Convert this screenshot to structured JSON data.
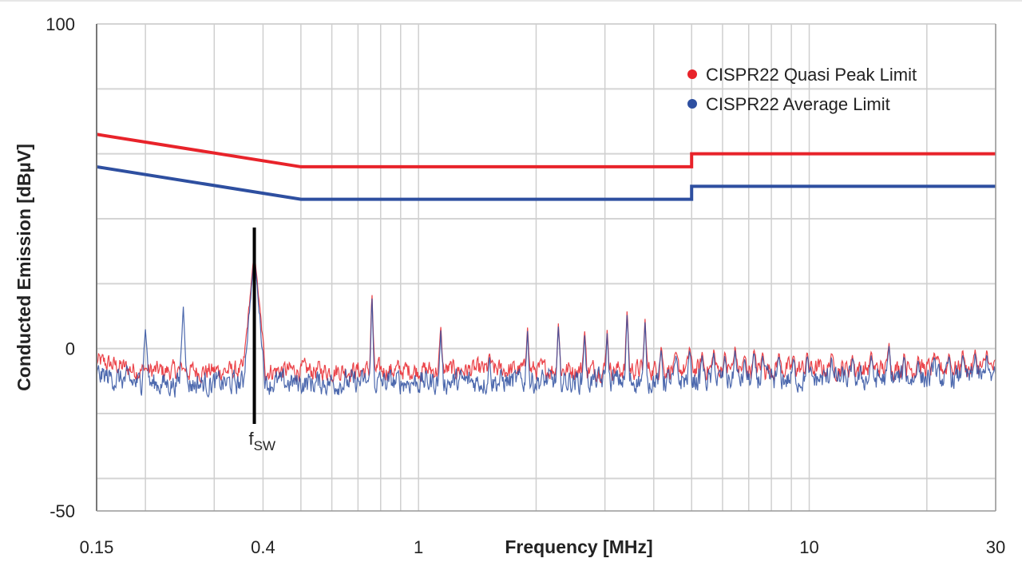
{
  "chart_data": {
    "type": "line",
    "xlabel": "Frequency [MHz]",
    "ylabel": "Conducted Emission [dBµV]",
    "xscale": "log",
    "xlim": [
      0.15,
      30
    ],
    "ylim": [
      -50,
      100
    ],
    "x_ticks": [
      {
        "v": 0.15,
        "label": "0.15"
      },
      {
        "v": 0.4,
        "label": "0.4"
      },
      {
        "v": 1,
        "label": "1"
      },
      {
        "v": 10,
        "label": "10"
      },
      {
        "v": 30,
        "label": "30"
      }
    ],
    "y_ticks": [
      {
        "v": 100,
        "label": "100"
      },
      {
        "v": 0,
        "label": "0"
      },
      {
        "v": -50,
        "label": "-50"
      }
    ],
    "grid": true,
    "y_grid": [
      100,
      80,
      60,
      40,
      20,
      0,
      -20,
      -40
    ],
    "x_grid": [
      0.2,
      0.3,
      0.4,
      0.5,
      0.6,
      0.7,
      0.8,
      0.9,
      1,
      2,
      3,
      4,
      5,
      6,
      7,
      8,
      9,
      10,
      20,
      30
    ],
    "legend_position": "top-right",
    "limits": [
      {
        "name": "CISPR22 Quasi Peak Limit",
        "color": "#e8232a",
        "points": [
          [
            0.15,
            66
          ],
          [
            0.5,
            56
          ],
          [
            5,
            56
          ],
          [
            5,
            60
          ],
          [
            30,
            60
          ]
        ]
      },
      {
        "name": "CISPR22 Average Limit",
        "color": "#2e4fa0",
        "points": [
          [
            0.15,
            56
          ],
          [
            0.5,
            46
          ],
          [
            5,
            46
          ],
          [
            5,
            50
          ],
          [
            30,
            50
          ]
        ]
      }
    ],
    "measured": [
      {
        "name": "Quasi Peak",
        "color": "#e8232a",
        "floor_db": -7,
        "floor_db_end": -6
      },
      {
        "name": "Average",
        "color": "#2e4fa0",
        "floor_db": -11,
        "floor_db_end": -9
      }
    ],
    "peaks": [
      [
        0.2,
        6
      ],
      [
        0.25,
        13
      ],
      [
        0.38,
        30
      ],
      [
        0.76,
        18
      ],
      [
        1.14,
        7
      ],
      [
        1.52,
        -1.5
      ],
      [
        1.9,
        7
      ],
      [
        2.28,
        8
      ],
      [
        2.66,
        6
      ],
      [
        3.04,
        6
      ],
      [
        3.42,
        12.5
      ],
      [
        3.8,
        9.3
      ],
      [
        4.18,
        1
      ],
      [
        4.56,
        -1
      ],
      [
        4.94,
        1
      ],
      [
        5.32,
        -1
      ],
      [
        5.7,
        0
      ],
      [
        6.08,
        -1
      ],
      [
        6.46,
        1
      ],
      [
        6.84,
        -2
      ],
      [
        7.22,
        0
      ],
      [
        7.6,
        -1
      ],
      [
        8.36,
        -1
      ],
      [
        9.12,
        -2
      ],
      [
        9.88,
        -1
      ],
      [
        11.4,
        -1
      ],
      [
        12.9,
        -2
      ],
      [
        14.4,
        -1
      ],
      [
        16.0,
        2
      ],
      [
        17.5,
        -1
      ],
      [
        19.0,
        -2
      ],
      [
        20.9,
        -1
      ],
      [
        22.8,
        -1
      ],
      [
        24.7,
        0
      ],
      [
        26.6,
        0
      ],
      [
        28.5,
        0
      ]
    ],
    "annotation": {
      "label": "f",
      "subscript": "SW",
      "frequency": 0.38
    }
  }
}
